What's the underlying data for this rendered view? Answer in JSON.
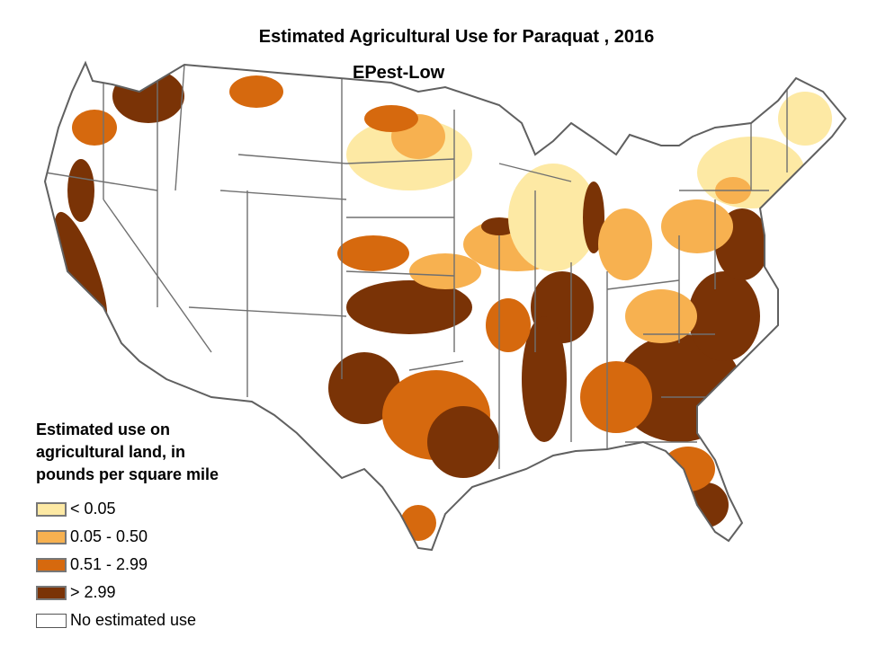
{
  "title": "Estimated Agricultural Use for Paraquat , 2016",
  "subtitle": "EPest-Low",
  "legend": {
    "title_lines": [
      "Estimated use on",
      "agricultural land, in",
      "pounds per square mile"
    ],
    "items": [
      {
        "label": "< 0.05",
        "color": "#fde9a4"
      },
      {
        "label": "0.05 - 0.50",
        "color": "#f7b150"
      },
      {
        "label": "0.51 - 2.99",
        "color": "#d6690e"
      },
      {
        "label": "> 2.99",
        "color": "#7a3306"
      },
      {
        "label": "No estimated use",
        "color": "#ffffff"
      }
    ]
  },
  "colors": {
    "state_border": "#707070",
    "background": "#ffffff"
  },
  "regions": [
    {
      "name": "Pacific Northwest (WA/OR)",
      "class": 3
    },
    {
      "name": "California Central Valley",
      "class": 3
    },
    {
      "name": "Northern Plains (ND/MT)",
      "class": 1
    },
    {
      "name": "Kansas / Nebraska",
      "class": 3
    },
    {
      "name": "Texas",
      "class": 3
    },
    {
      "name": "Corn Belt (IA/IL/IN)",
      "class": 2
    },
    {
      "name": "Mississippi Delta",
      "class": 3
    },
    {
      "name": "Southeast",
      "class": 3
    },
    {
      "name": "Great Lakes",
      "class": 0
    },
    {
      "name": "Northeast",
      "class": 0
    },
    {
      "name": "Florida",
      "class": 3
    }
  ]
}
